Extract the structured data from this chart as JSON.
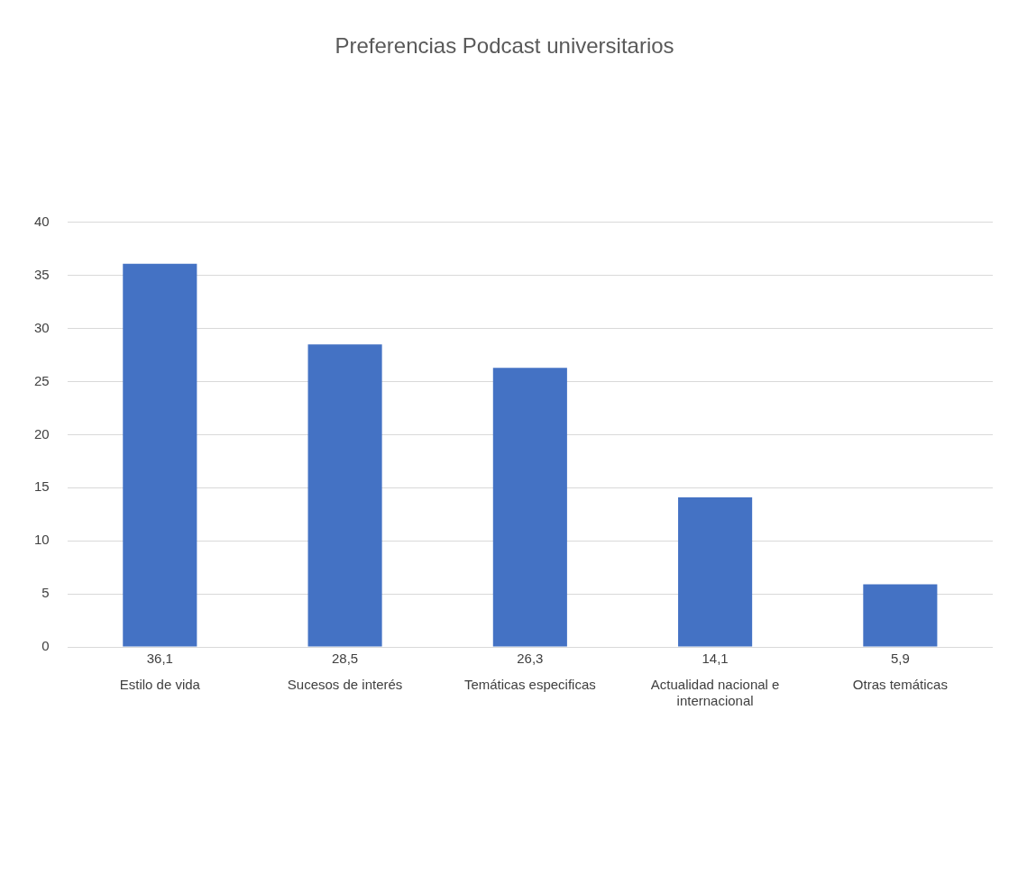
{
  "chart_data": {
    "type": "bar",
    "title": "Preferencias Podcast universitarios",
    "categories": [
      "Estilo de vida",
      "Sucesos de interés",
      "Temáticas especificas",
      "Actualidad nacional e internacional",
      "Otras temáticas"
    ],
    "values": [
      36.1,
      28.5,
      26.3,
      14.1,
      5.9
    ],
    "value_labels": [
      "36,1",
      "28,5",
      "26,3",
      "14,1",
      "5,9"
    ],
    "color": "#4472c4",
    "ylim": [
      0,
      40
    ],
    "yticks": [
      0,
      5,
      10,
      15,
      20,
      25,
      30,
      35,
      40
    ],
    "grid": "y",
    "legend": false
  }
}
